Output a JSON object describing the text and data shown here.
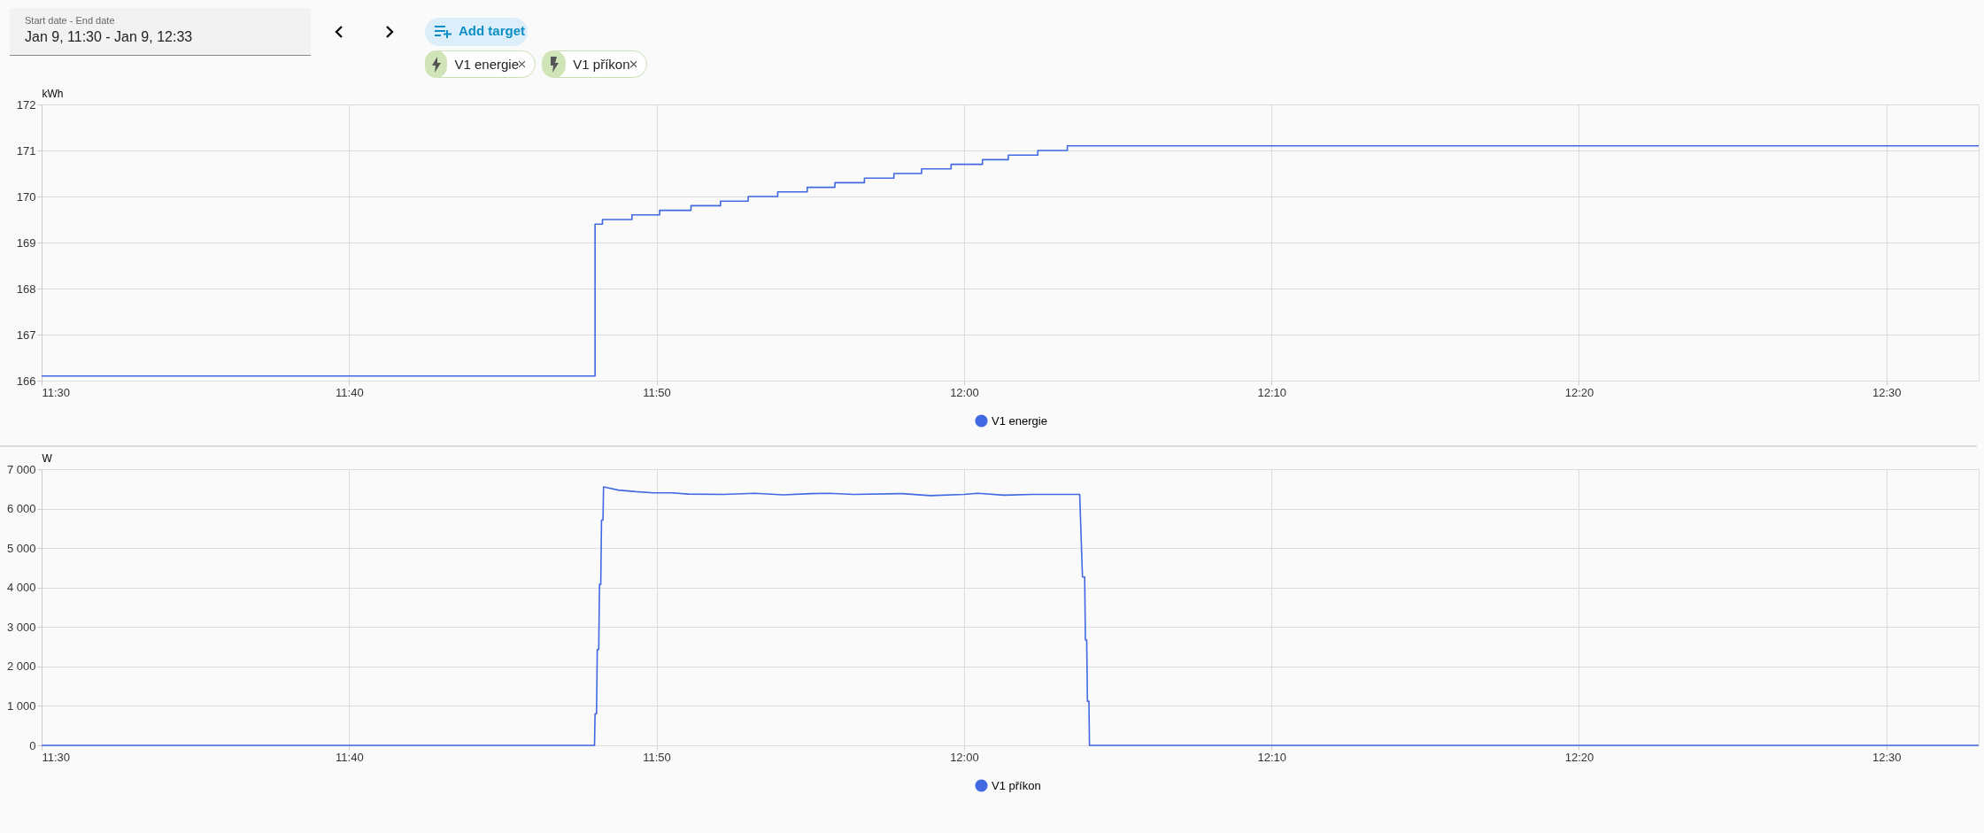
{
  "chart_data": [
    {
      "type": "other",
      "annotations": [
        "Start date - End date",
        "Jan 9, 11:30 - Jan 9, 12:33",
        "Add target",
        "V1 energie",
        "V1 příkon"
      ]
    },
    {
      "type": "step",
      "ylabel": "kWh",
      "xlim": [
        11.5,
        12.55
      ],
      "xticks": [
        {
          "value": 11.5,
          "label": "11:30"
        },
        {
          "value": 11.6667,
          "label": "11:40"
        },
        {
          "value": 11.8333,
          "label": "11:50"
        },
        {
          "value": 12,
          "label": "12:00"
        },
        {
          "value": 12.1667,
          "label": "12:10"
        },
        {
          "value": 12.3333,
          "label": "12:20"
        },
        {
          "value": 12.5,
          "label": "12:30"
        }
      ],
      "ylim": [
        166,
        172
      ],
      "yticks": [
        166,
        167,
        168,
        169,
        170,
        171,
        172
      ],
      "grid": true,
      "legend": "bottom",
      "marker": "none",
      "series": [
        {
          "name": "V1 energie",
          "color": "#4169e1",
          "x": [
            11.5,
            11.8,
            11.804,
            11.82,
            11.835,
            11.852,
            11.868,
            11.883,
            11.899,
            11.915,
            11.93,
            11.946,
            11.962,
            11.977,
            11.993,
            12.01,
            12.024,
            12.04,
            12.056,
            12.55
          ],
          "values": [
            166.1,
            169.4,
            169.5,
            169.6,
            169.7,
            169.8,
            169.9,
            170.0,
            170.1,
            170.2,
            170.3,
            170.4,
            170.5,
            170.6,
            170.7,
            170.8,
            170.9,
            171.0,
            171.1,
            171.1
          ]
        }
      ]
    },
    {
      "type": "line",
      "ylabel": "W",
      "xlim": [
        11.5,
        12.55
      ],
      "xticks": [
        {
          "value": 11.5,
          "label": "11:30"
        },
        {
          "value": 11.6667,
          "label": "11:40"
        },
        {
          "value": 11.8333,
          "label": "11:50"
        },
        {
          "value": 12,
          "label": "12:00"
        },
        {
          "value": 12.1667,
          "label": "12:10"
        },
        {
          "value": 12.3333,
          "label": "12:20"
        },
        {
          "value": 12.5,
          "label": "12:30"
        }
      ],
      "ylim": [
        0,
        7000
      ],
      "yticks": [
        0,
        {
          "value": 1000,
          "label": "1 000"
        },
        {
          "value": 2000,
          "label": "2 000"
        },
        {
          "value": 3000,
          "label": "3 000"
        },
        {
          "value": 4000,
          "label": "4 000"
        },
        {
          "value": 5000,
          "label": "5 000"
        },
        {
          "value": 6000,
          "label": "6 000"
        },
        {
          "value": 7000,
          "label": "7 000"
        }
      ],
      "grid": true,
      "legend": "bottom",
      "marker": "none",
      "series": [
        {
          "name": "V1 příkon",
          "color": "#4169e1",
          "x": [
            11.5,
            11.7997,
            11.8,
            11.8008,
            11.8012,
            11.802,
            11.8024,
            11.8031,
            11.8035,
            11.8043,
            11.8046,
            11.8126,
            11.8221,
            11.8316,
            11.8411,
            11.8506,
            11.8696,
            11.8867,
            11.9019,
            11.9171,
            11.9267,
            11.94,
            11.9665,
            11.9818,
            12.0,
            12.0074,
            12.0217,
            12.0369,
            12.0627,
            12.0642,
            12.0654,
            12.0658,
            12.0665,
            12.0669,
            12.0677,
            12.068,
            12.55
          ],
          "values": [
            0,
            0,
            800,
            800,
            2430,
            2430,
            4080,
            4080,
            5710,
            5710,
            6550,
            6470,
            6430,
            6400,
            6400,
            6370,
            6360,
            6390,
            6350,
            6380,
            6390,
            6360,
            6380,
            6330,
            6360,
            6390,
            6340,
            6360,
            6360,
            4270,
            4270,
            2670,
            2670,
            1120,
            1120,
            0,
            0
          ]
        }
      ]
    }
  ]
}
